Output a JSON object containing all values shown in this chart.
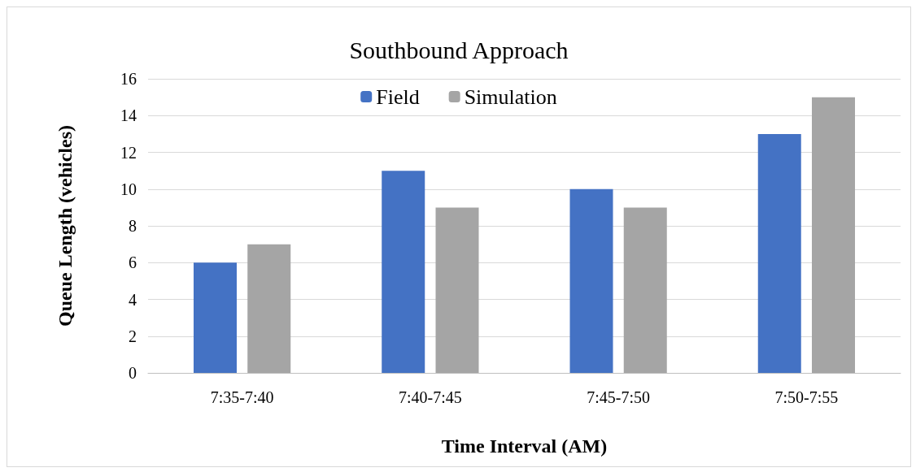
{
  "chart_data": {
    "type": "bar",
    "title": "Southbound Approach",
    "xlabel": "Time Interval (AM)",
    "ylabel": "Queue Length (vehicles)",
    "categories": [
      "7:35-7:40",
      "7:40-7:45",
      "7:45-7:50",
      "7:50-7:55"
    ],
    "series": [
      {
        "name": "Field",
        "color": "#4472c4",
        "values": [
          6,
          11,
          10,
          13
        ]
      },
      {
        "name": "Simulation",
        "color": "#a5a5a5",
        "values": [
          7,
          9,
          9,
          15
        ]
      }
    ],
    "ylim": [
      0,
      16
    ],
    "yticks": [
      0,
      2,
      4,
      6,
      8,
      10,
      12,
      14,
      16
    ],
    "grid": "y",
    "legend": "top"
  }
}
